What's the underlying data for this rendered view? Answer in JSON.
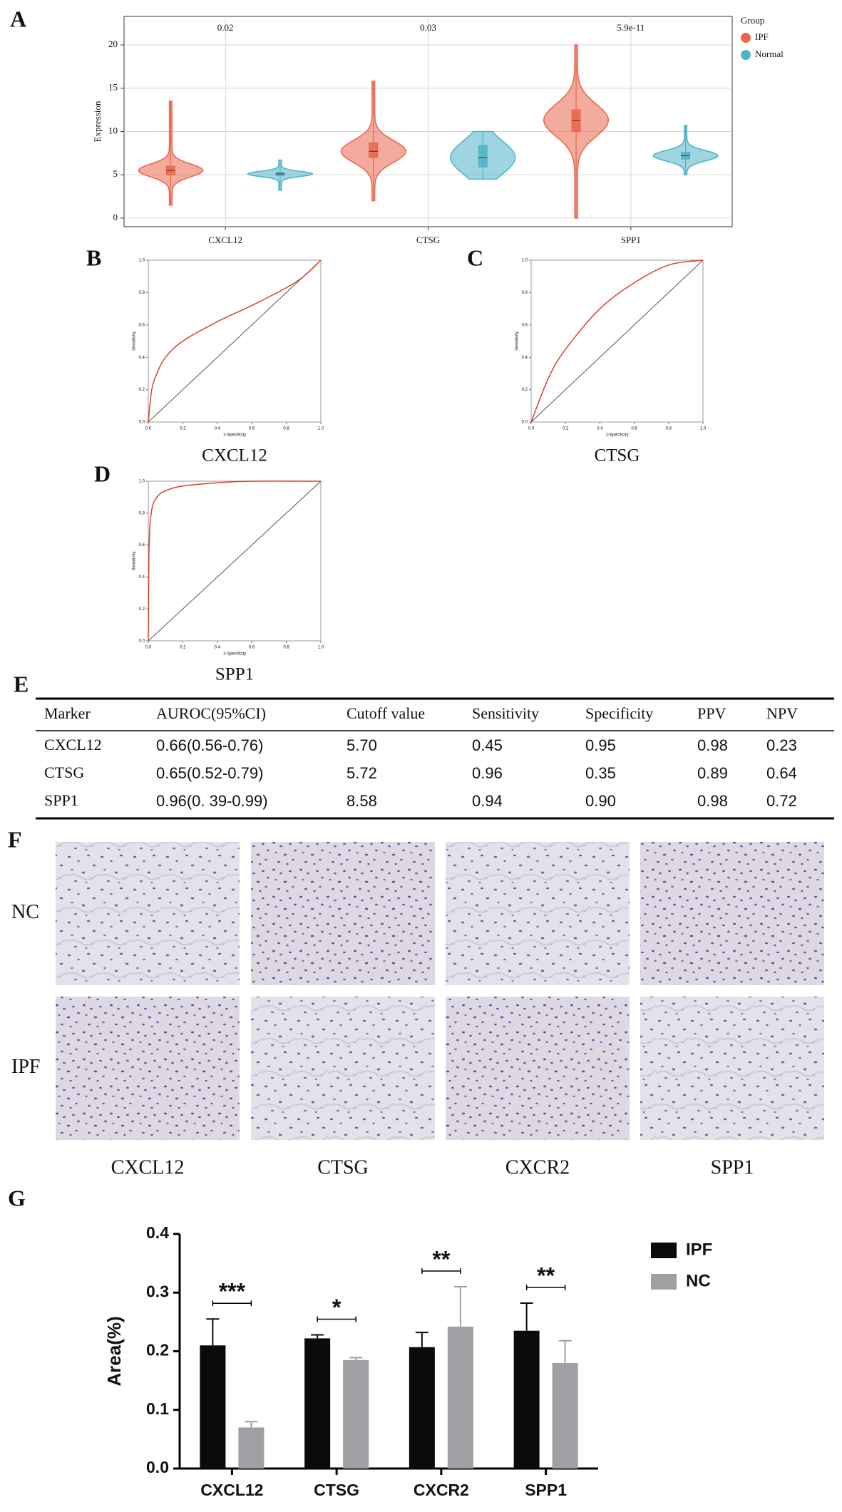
{
  "chart_data": [
    {
      "type": "violin",
      "panel": "A",
      "ylabel": "Expression",
      "legend_title": "Group",
      "categories": [
        "CXCL12",
        "CTSG",
        "SPP1"
      ],
      "pvalues": [
        "0.02",
        "0.03",
        "5.9e-11"
      ],
      "series": [
        {
          "name": "IPF",
          "color": "#e8664a",
          "min": [
            1.5,
            2,
            0
          ],
          "q1": [
            5,
            7,
            10
          ],
          "median": [
            5.5,
            7.7,
            11.3
          ],
          "q3": [
            6,
            8.7,
            12.5
          ],
          "max": [
            13.5,
            15.8,
            20
          ]
        },
        {
          "name": "Normal",
          "color": "#4fb3c8",
          "min": [
            3.2,
            4.5,
            5
          ],
          "q1": [
            4.9,
            5.9,
            6.8
          ],
          "median": [
            5.1,
            7,
            7.2
          ],
          "q3": [
            5.3,
            8.4,
            7.6
          ],
          "max": [
            6.7,
            10,
            10.7
          ]
        }
      ],
      "ylim": [
        -1,
        23.3
      ],
      "yticks": [
        0,
        5,
        10,
        15,
        20
      ],
      "grid": true
    },
    {
      "type": "roc",
      "panel": "B",
      "title": "CXCL12",
      "xlabel": "1-Specificity",
      "ylabel": "Sensitivity",
      "color": "#d9412b",
      "x": [
        0,
        0.02,
        0.05,
        0.1,
        0.2,
        0.4,
        0.6,
        0.8,
        0.9,
        1
      ],
      "y": [
        0,
        0.2,
        0.3,
        0.4,
        0.5,
        0.62,
        0.72,
        0.83,
        0.9,
        1
      ],
      "xlim": [
        0,
        1
      ],
      "ylim": [
        0,
        1
      ],
      "xticks": [
        {
          "value": 0,
          "label": "0.0"
        },
        0.2,
        0.4,
        0.6,
        0.8,
        {
          "value": 1,
          "label": "1.0"
        }
      ],
      "yticks": [
        {
          "value": 0,
          "label": "0.0"
        },
        0.2,
        0.4,
        0.6,
        0.8,
        {
          "value": 1,
          "label": "1.0"
        }
      ]
    },
    {
      "type": "roc",
      "panel": "C",
      "title": "CTSG",
      "xlabel": "1-Specificity",
      "ylabel": "Sensitivity",
      "color": "#d9412b",
      "x": [
        0,
        0.1,
        0.2,
        0.4,
        0.6,
        0.8,
        1
      ],
      "y": [
        0,
        0.27,
        0.45,
        0.7,
        0.86,
        0.97,
        1
      ],
      "xlim": [
        0,
        1
      ],
      "ylim": [
        0,
        1
      ],
      "xticks": [
        {
          "value": 0,
          "label": "0.0"
        },
        0.2,
        0.4,
        0.6,
        0.8,
        {
          "value": 1,
          "label": "1.0"
        }
      ],
      "yticks": [
        {
          "value": 0,
          "label": "0.0"
        },
        0.2,
        0.4,
        0.6,
        0.8,
        {
          "value": 1,
          "label": "1.0"
        }
      ]
    },
    {
      "type": "roc",
      "panel": "D",
      "title": "SPP1",
      "xlabel": "1-Specificity",
      "ylabel": "Sensitivity",
      "color": "#d9412b",
      "x": [
        0,
        0.005,
        0.02,
        0.05,
        0.1,
        0.2,
        0.4,
        0.6,
        1
      ],
      "y": [
        0,
        0.6,
        0.82,
        0.9,
        0.94,
        0.97,
        0.99,
        1,
        1
      ],
      "xlim": [
        0,
        1
      ],
      "ylim": [
        0,
        1
      ],
      "xticks": [
        {
          "value": 0,
          "label": "0.0"
        },
        0.2,
        0.4,
        0.6,
        0.8,
        {
          "value": 1,
          "label": "1.0"
        }
      ],
      "yticks": [
        {
          "value": 0,
          "label": "0.0"
        },
        0.2,
        0.4,
        0.6,
        0.8,
        {
          "value": 1,
          "label": "1.0"
        }
      ]
    },
    {
      "type": "bar",
      "panel": "G",
      "ylabel": "Area(%)",
      "categories": [
        "CXCL12",
        "CTSG",
        "CXCR2",
        "SPP1"
      ],
      "series": [
        {
          "name": "IPF",
          "color": "#0a0a0a",
          "values": [
            0.21,
            0.222,
            0.207,
            0.235
          ],
          "errors": [
            0.045,
            0.006,
            0.025,
            0.047
          ]
        },
        {
          "name": "NC",
          "color": "#a0a0a4",
          "values": [
            0.07,
            0.185,
            0.242,
            0.18
          ],
          "errors": [
            0.01,
            0.004,
            0.068,
            0.038
          ]
        }
      ],
      "significance": [
        "***",
        "*",
        "**",
        "**"
      ],
      "ylim": [
        0,
        0.4
      ],
      "yticks": [
        {
          "value": 0,
          "label": "0.0"
        },
        0.1,
        0.2,
        0.3,
        0.4
      ]
    }
  ],
  "table": {
    "panel": "E",
    "header": [
      "Marker",
      "AUROC(95%CI)",
      "Cutoff value",
      "Sensitivity",
      "Specificity",
      "PPV",
      "NPV"
    ],
    "rows": [
      [
        "CXCL12",
        "0.66(0.56-0.76)",
        "5.70",
        "0.45",
        "0.95",
        "0.98",
        "0.23"
      ],
      [
        "CTSG",
        "0.65(0.52-0.79)",
        "5.72",
        "0.96",
        "0.35",
        "0.89",
        "0.64"
      ],
      [
        "SPP1",
        "0.96(0. 39-0.99)",
        "8.58",
        "0.94",
        "0.90",
        "0.98",
        "0.72"
      ]
    ]
  },
  "ihc": {
    "panel": "F",
    "rows": [
      "NC",
      "IPF"
    ],
    "columns": [
      "CXCL12",
      "CTSG",
      "CXCR2",
      "SPP1"
    ]
  }
}
